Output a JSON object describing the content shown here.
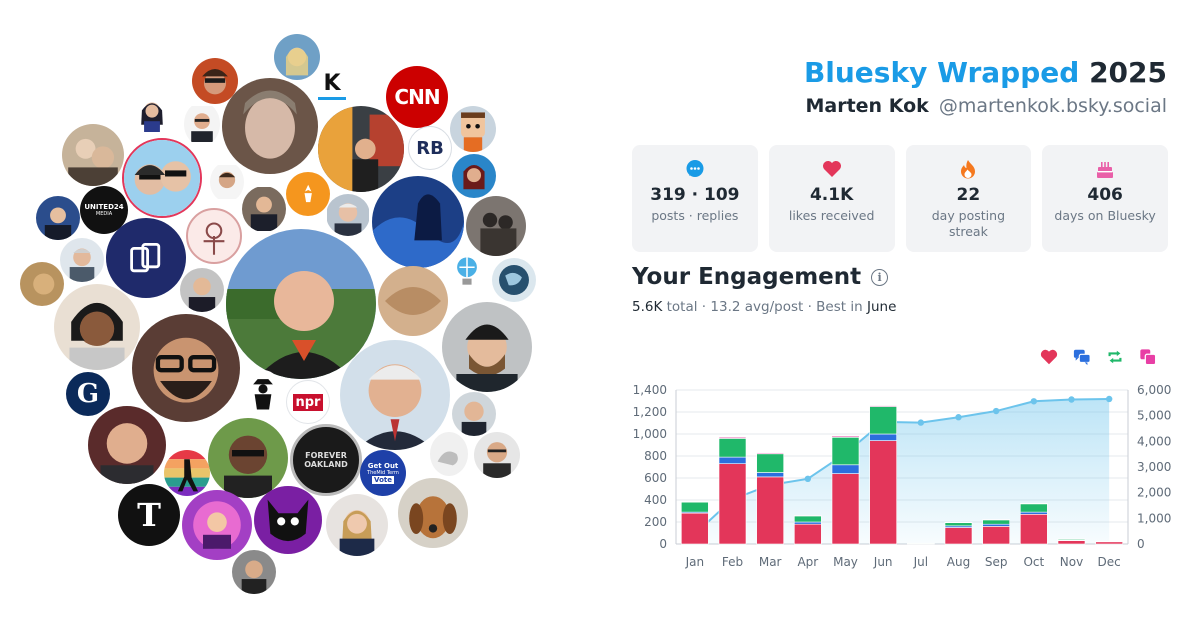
{
  "header": {
    "brand": "Bluesky Wrapped",
    "year": "2025",
    "name": "Marten Kok",
    "handle": "@martenkok.bsky.social"
  },
  "stats": [
    {
      "icon": "chat-bubble-icon",
      "value": "319 · 109",
      "label": "posts · replies"
    },
    {
      "icon": "heart-icon",
      "value": "4.1K",
      "label": "likes received"
    },
    {
      "icon": "fire-icon",
      "value": "22",
      "label": "day posting streak"
    },
    {
      "icon": "cake-icon",
      "value": "406",
      "label": "days on Bluesky"
    }
  ],
  "engagement": {
    "title": "Your Engagement",
    "total": "5.6K",
    "total_label": "total",
    "avg": "13.2 avg/post",
    "best_prefix": "Best in",
    "best_month": "June"
  },
  "legend": [
    {
      "icon": "heart-icon",
      "color": "#e3365a"
    },
    {
      "icon": "reply-icon",
      "color": "#2b6fde"
    },
    {
      "icon": "repost-icon",
      "color": "#20b86a"
    },
    {
      "icon": "quote-icon",
      "color": "#e83fa5"
    }
  ],
  "avatar_labels": {
    "cnn": "CNN",
    "npr": "npr",
    "k_logo": "K",
    "rb_logo": "RB",
    "g_logo": "G",
    "nyt_logo": "T",
    "united24": "UNITED24",
    "united24_sub": "MEDIA",
    "forever": "FOREVER",
    "oakland": "OAKLAND",
    "getout_1": "Get Out",
    "getout_2": "TheMid Term",
    "getout_3": "Vote"
  },
  "chart_data": {
    "type": "bar",
    "categories": [
      "Jan",
      "Feb",
      "Mar",
      "Apr",
      "May",
      "Jun",
      "Jul",
      "Aug",
      "Sep",
      "Oct",
      "Nov",
      "Dec"
    ],
    "stacked": true,
    "series": [
      {
        "color": "#e3365a",
        "values": [
          280,
          730,
          610,
          180,
          640,
          940,
          5,
          150,
          160,
          270,
          30,
          20
        ]
      },
      {
        "color": "#2b6fde",
        "values": [
          10,
          60,
          40,
          20,
          80,
          60,
          0,
          15,
          20,
          20,
          5,
          0
        ]
      },
      {
        "color": "#20b86a",
        "values": [
          90,
          170,
          170,
          55,
          250,
          250,
          3,
          30,
          40,
          75,
          10,
          5
        ]
      },
      {
        "color": "#e83fa5",
        "values": [
          5,
          10,
          8,
          5,
          10,
          8,
          0,
          3,
          3,
          5,
          2,
          0
        ]
      }
    ],
    "line": {
      "color": "#6cc4ec",
      "values": [
        390,
        1740,
        2300,
        2540,
        3530,
        4760,
        4730,
        4940,
        5180,
        5560,
        5630,
        5650
      ]
    },
    "y_left": {
      "ticks": [
        "0",
        "200",
        "400",
        "600",
        "800",
        "1,000",
        "1,200",
        "1,400"
      ],
      "max": 1400
    },
    "y_right": {
      "ticks": [
        "0",
        "1,000",
        "2,000",
        "3,000",
        "4,000",
        "5,000",
        "6,000"
      ],
      "max": 6000
    },
    "grid": true
  }
}
